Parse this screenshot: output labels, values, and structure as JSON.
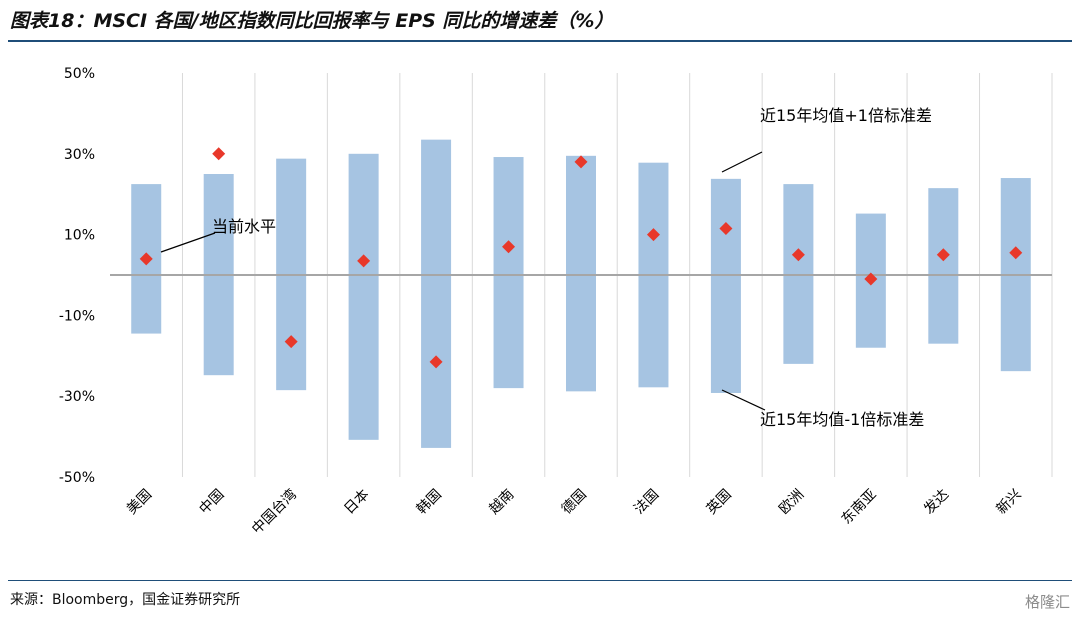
{
  "title": "图表18：MSCI 各国/地区指数同比回报率与 EPS 同比的增速差（%）",
  "source": "来源：Bloomberg，国金证券研究所",
  "watermark": "格隆汇",
  "colors": {
    "band": "#a6c4e2",
    "marker": "#e8382a",
    "grid": "#d9d9d9",
    "zero_line": "#a6a6a6",
    "rule": "#1f4e79"
  },
  "chart_data": {
    "type": "range_with_markers",
    "categories": [
      "美国",
      "中国",
      "中国台湾",
      "日本",
      "韩国",
      "越南",
      "德国",
      "法国",
      "英国",
      "欧洲",
      "东南亚",
      "发达",
      "新兴"
    ],
    "ylim": [
      -50,
      50
    ],
    "ytick_labels": [
      "50%",
      "30%",
      "10%",
      "-10%",
      "-30%",
      "-50%"
    ],
    "ytick_values": [
      50,
      30,
      10,
      -10,
      -30,
      -50
    ],
    "series": [
      {
        "name": "近15年均值+1倍标准差",
        "values": [
          22.5,
          25.0,
          28.8,
          30.0,
          33.5,
          29.2,
          29.5,
          27.8,
          23.8,
          22.5,
          15.2,
          21.5,
          24.0
        ]
      },
      {
        "name": "近15年均值-1倍标准差",
        "values": [
          -14.5,
          -24.8,
          -28.5,
          -40.8,
          -42.8,
          -28.0,
          -28.8,
          -27.8,
          -29.2,
          -22.0,
          -18.0,
          -17.0,
          -23.8
        ]
      },
      {
        "name": "当前水平",
        "values": [
          4.0,
          30.0,
          -16.5,
          3.5,
          -21.5,
          7.0,
          28.0,
          10.0,
          11.5,
          5.0,
          -1.0,
          5.0,
          5.5
        ]
      }
    ],
    "annotations": [
      {
        "text": "当前水平"
      },
      {
        "text": "近15年均值+1倍标准差"
      },
      {
        "text": "近15年均值-1倍标准差"
      }
    ]
  }
}
